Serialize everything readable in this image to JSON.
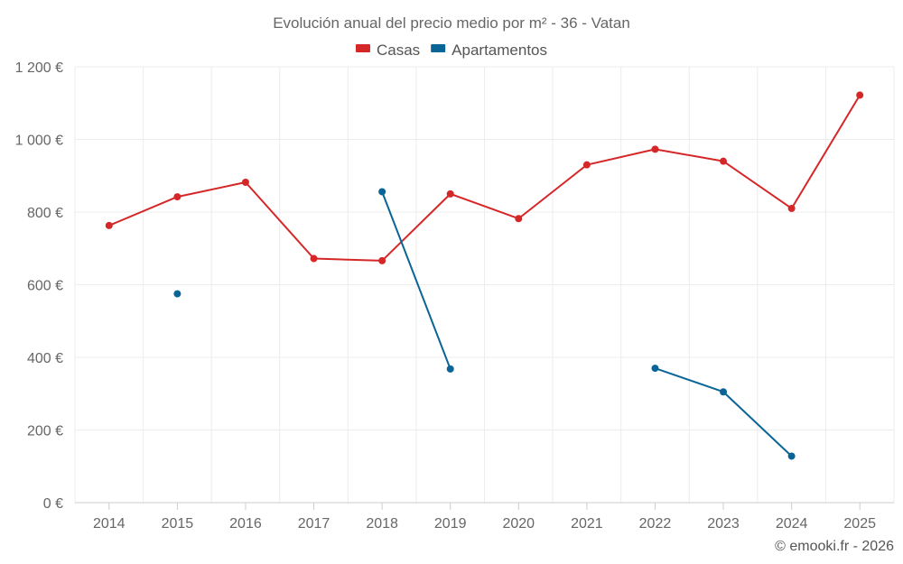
{
  "chart_data": {
    "type": "line",
    "title": "Evolución anual del precio medio por m² - 36 - Vatan",
    "categories": [
      "2014",
      "2015",
      "2016",
      "2017",
      "2018",
      "2019",
      "2020",
      "2021",
      "2022",
      "2023",
      "2024",
      "2025"
    ],
    "ylim": [
      0,
      1200
    ],
    "yticks": [
      0,
      200,
      400,
      600,
      800,
      1000,
      1200
    ],
    "ytick_labels": [
      "0 €",
      "200 €",
      "400 €",
      "600 €",
      "800 €",
      "1 000 €",
      "1 200 €"
    ],
    "grid": true,
    "legend_position": "top-center",
    "series": [
      {
        "name": "Casas",
        "color": "#d62728",
        "values": [
          763,
          842,
          882,
          672,
          666,
          850,
          782,
          930,
          973,
          940,
          810,
          1122
        ]
      },
      {
        "name": "Apartamentos",
        "color": "#0a6596",
        "values": [
          null,
          575,
          null,
          null,
          856,
          368,
          null,
          null,
          370,
          305,
          128,
          null
        ]
      }
    ],
    "credit": "© emooki.fr - 2026"
  }
}
